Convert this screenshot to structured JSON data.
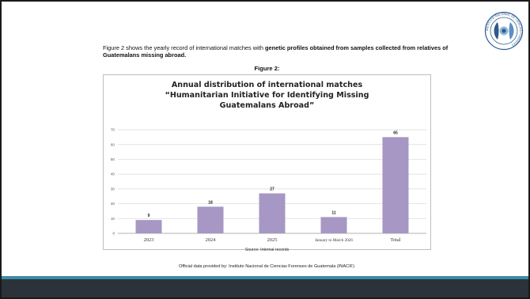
{
  "intro": {
    "part1": "Figure 2 shows the yearly record of international matches with ",
    "bold": "genetic profiles obtained from samples collected from relatives of Guatemalans missing abroad."
  },
  "figure_label": "Figure 2:",
  "source": "Source: Internal records",
  "footer_note": "Official data provided by: Instituto Nacional de Ciencias Forenses de Guatemala (INACIF)",
  "seal": {
    "ring_text": "INSTITUTO NACIONAL DE CIENCIAS FORENSES"
  },
  "colors": {
    "bar": "#a797c4",
    "accent_band": "#3a8da8",
    "footer_band": "#2b323a"
  },
  "chart_data": {
    "type": "bar",
    "title_lines": [
      "Annual distribution of international matches",
      "“Humanitarian Initiative for Identifying Missing",
      "Guatemalans Abroad”"
    ],
    "categories": [
      "2023",
      "2024",
      "2025",
      "January to March 2026",
      "Total"
    ],
    "values": [
      9,
      18,
      27,
      11,
      65
    ],
    "data_labels": [
      "9",
      "18",
      "27",
      "11",
      "65"
    ],
    "ylim": [
      0,
      70
    ],
    "yticks": [
      "0",
      "10",
      "20",
      "30",
      "40",
      "50",
      "60",
      "70"
    ],
    "grid": true
  }
}
